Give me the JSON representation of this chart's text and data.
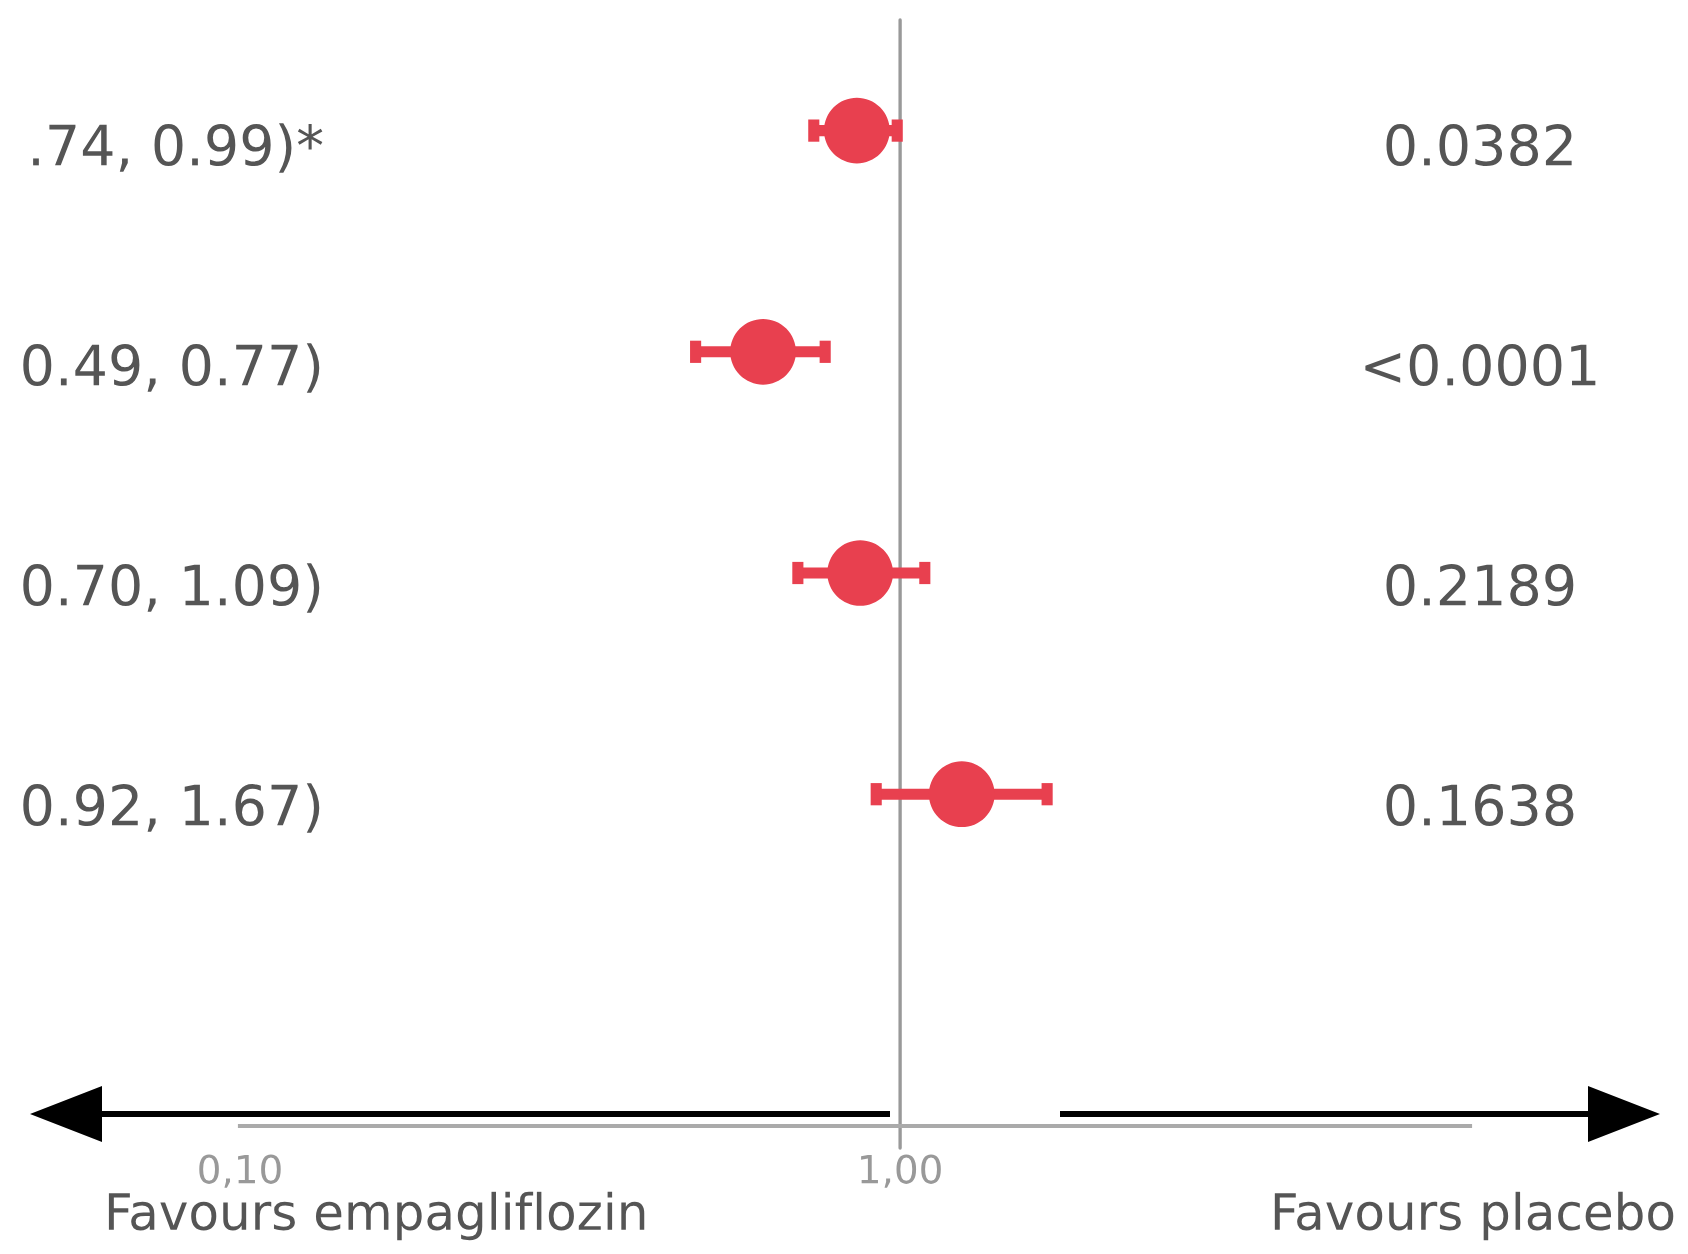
{
  "chart_data": {
    "type": "scatter",
    "orientation": "horizontal",
    "categories": [
      null,
      null,
      null,
      null,
      null
    ],
    "series": [
      {
        "color": "#e8404f",
        "values": [
          0.86,
          0.62,
          0.87,
          1.24,
          null
        ],
        "errors": [
          [
            0.74,
            0.99
          ],
          [
            0.49,
            0.77
          ],
          [
            0.7,
            1.09
          ],
          [
            0.92,
            1.67
          ],
          null
        ]
      }
    ],
    "marker": "circle",
    "log": "x",
    "xlim": [
      0.1,
      7.3
    ],
    "xticks": [
      {
        "value": 0.1,
        "label": "0,10"
      },
      {
        "value": 1,
        "label": "1,00"
      }
    ],
    "tick_labels": "x",
    "ref_lines": [
      {
        "axis": "x",
        "value": 1,
        "color": "#999999"
      }
    ],
    "annotations": [
      ".74, 0.99)*",
      "0.49, 0.77)",
      "0.70, 1.09)",
      "0.92, 1.67)",
      "0.0382",
      "<0.0001",
      "0.2189",
      "0.1638",
      "Favours empagliflozin",
      "Favours placebo"
    ]
  }
}
